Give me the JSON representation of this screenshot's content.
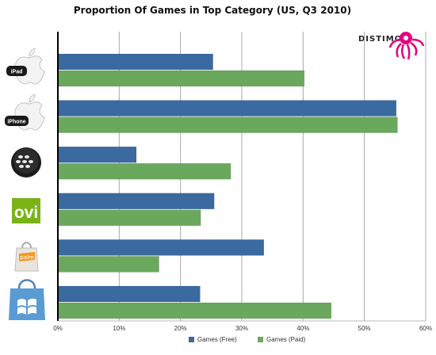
{
  "chart_data": {
    "type": "bar",
    "orientation": "horizontal",
    "title": "Proportion Of Games in Top Category (US, Q3 2010)",
    "categories": [
      "iPad",
      "iPhone",
      "BlackBerry",
      "ovi",
      "palm",
      "Windows"
    ],
    "series": [
      {
        "name": "Games (Free)",
        "color": "#3b6aa0",
        "values": [
          25.3,
          55.2,
          12.8,
          25.5,
          33.6,
          23.2
        ]
      },
      {
        "name": "Games (Paid)",
        "color": "#6aa85e",
        "values": [
          40.2,
          55.4,
          28.2,
          23.3,
          16.5,
          44.6
        ]
      }
    ],
    "xlim": [
      0,
      60
    ],
    "xticks": [
      "0%",
      "10%",
      "20%",
      "30%",
      "40%",
      "50%",
      "60%"
    ],
    "grid": true,
    "legend": "bottom"
  },
  "brand": {
    "name": "DISTIMO",
    "color": "#e6007e"
  },
  "labels": {
    "ipad_badge": "iPad",
    "iphone_badge": "iPhone",
    "ovi_logo": "ovi",
    "palm_logo": "palm"
  },
  "icons": [
    "apple-icon",
    "apple-icon",
    "blackberry-icon",
    "ovi-icon",
    "palm-icon",
    "windows-marketplace-icon"
  ]
}
